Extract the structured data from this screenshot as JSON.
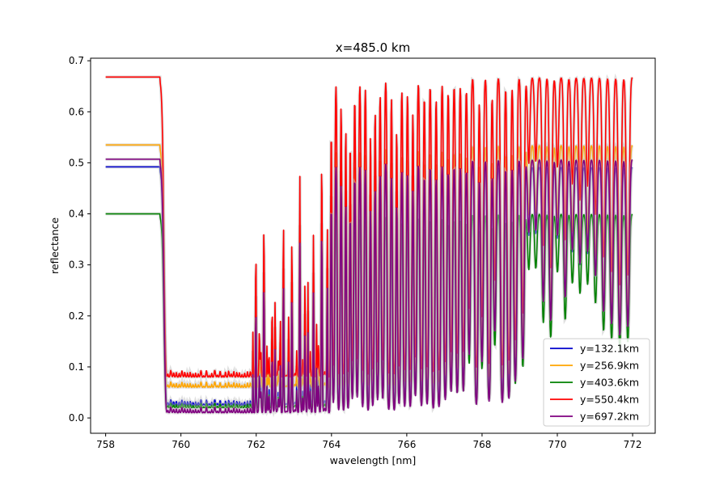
{
  "chart_data": {
    "type": "line",
    "title": "x=485.0 km",
    "xlabel": "wavelength [nm]",
    "ylabel": "reflectance",
    "xlim": [
      757.6,
      772.6
    ],
    "ylim": [
      -0.03,
      0.705
    ],
    "xticks": [
      758,
      760,
      762,
      764,
      766,
      768,
      770,
      772
    ],
    "yticks": [
      0.0,
      0.1,
      0.2,
      0.3,
      0.4,
      0.5,
      0.6,
      0.7
    ],
    "xtick_labels": [
      "758",
      "760",
      "762",
      "764",
      "766",
      "768",
      "770",
      "772"
    ],
    "ytick_labels": [
      "0.0",
      "0.1",
      "0.2",
      "0.3",
      "0.4",
      "0.5",
      "0.6",
      "0.7"
    ],
    "grid": false,
    "legend_position": "lower-right",
    "series": [
      {
        "name": "y=132.1km",
        "color": "#0000cc",
        "continuum": 0.492,
        "deep_floor": 0.025,
        "weak_max": 0.45
      },
      {
        "name": "y=256.9km",
        "color": "#ffa500",
        "continuum": 0.535,
        "deep_floor": 0.06,
        "weak_max": 0.49
      },
      {
        "name": "y=403.6km",
        "color": "#008000",
        "continuum": 0.4,
        "deep_floor": 0.02,
        "weak_max": 0.355
      },
      {
        "name": "y=550.4km",
        "color": "#ff0000",
        "continuum": 0.668,
        "deep_floor": 0.08,
        "weak_max": 0.635
      },
      {
        "name": "y=697.2km",
        "color": "#800080",
        "continuum": 0.507,
        "deep_floor": 0.01,
        "weak_max": 0.445
      }
    ]
  }
}
